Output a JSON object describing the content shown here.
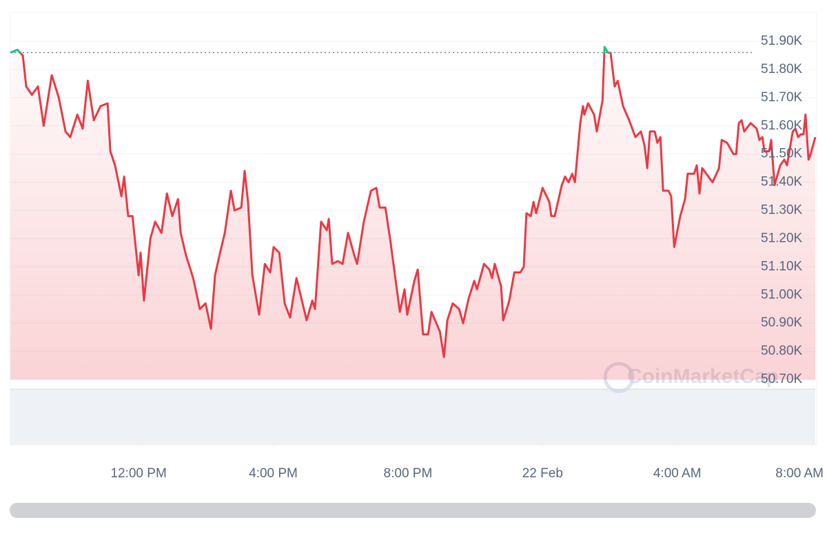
{
  "chart_data": {
    "type": "line",
    "watermark": "CoinMarketCap",
    "color": "#ea3943",
    "up_color": "#16c784",
    "reference_line": 51860,
    "x": [
      8.19,
      8.4,
      8.56,
      8.66,
      8.83,
      9.01,
      9.18,
      9.42,
      9.63,
      9.83,
      9.97,
      10.18,
      10.34,
      10.49,
      10.67,
      10.87,
      11.08,
      11.16,
      11.3,
      11.49,
      11.57,
      11.69,
      11.82,
      12.0,
      12.06,
      12.16,
      12.35,
      12.49,
      12.68,
      12.84,
      13.0,
      13.17,
      13.25,
      13.41,
      13.62,
      13.82,
      13.99,
      14.15,
      14.27,
      14.4,
      14.56,
      14.74,
      14.85,
      15.05,
      15.15,
      15.25,
      15.38,
      15.58,
      15.75,
      15.91,
      16.01,
      16.18,
      16.34,
      16.5,
      16.69,
      16.83,
      16.99,
      17.16,
      17.24,
      17.42,
      17.59,
      17.65,
      17.75,
      17.92,
      18.06,
      18.22,
      18.41,
      18.49,
      18.69,
      18.9,
      19.06,
      19.16,
      19.33,
      19.47,
      19.66,
      19.76,
      19.9,
      19.98,
      20.19,
      20.29,
      20.45,
      20.6,
      20.7,
      20.95,
      21.07,
      21.17,
      21.33,
      21.52,
      21.64,
      21.81,
      21.97,
      22.05,
      22.26,
      22.42,
      22.5,
      22.58,
      22.77,
      22.83,
      23.01,
      23.16,
      23.34,
      23.44,
      23.52,
      23.65,
      23.73,
      23.81,
      24.0,
      24.2,
      24.26,
      24.36,
      24.57,
      24.67,
      24.77,
      24.88,
      24.96,
      25.12,
      25.2,
      25.24,
      25.35,
      25.53,
      25.61,
      25.78,
      25.84,
      25.94,
      26.02,
      26.14,
      26.23,
      26.39,
      26.57,
      26.76,
      26.92,
      27.03,
      27.11,
      27.19,
      27.33,
      27.41,
      27.5,
      27.58,
      27.74,
      27.82,
      27.91,
      28.09,
      28.23,
      28.31,
      28.5,
      28.58,
      28.66,
      28.74,
      29.05,
      29.24,
      29.32,
      29.48,
      29.67,
      29.75,
      29.83,
      29.91,
      29.99,
      30.18,
      30.36,
      30.44,
      30.53,
      30.59,
      30.73,
      30.79,
      30.89,
      31.06,
      31.18,
      31.26,
      31.43,
      31.51,
      31.59,
      31.67,
      31.75,
      31.81,
      31.9,
      31.96,
      32.1
    ],
    "values": [
      51860,
      51870,
      51850,
      51740,
      51710,
      51740,
      51600,
      51780,
      51700,
      51580,
      51560,
      51640,
      51590,
      51760,
      51620,
      51670,
      51680,
      51510,
      51460,
      51350,
      51420,
      51280,
      51280,
      51070,
      51150,
      50980,
      51200,
      51260,
      51220,
      51360,
      51280,
      51340,
      51220,
      51140,
      51060,
      50950,
      50970,
      50880,
      51070,
      51140,
      51220,
      51370,
      51300,
      51310,
      51440,
      51330,
      51070,
      50930,
      51110,
      51080,
      51170,
      51150,
      50970,
      50920,
      51060,
      50990,
      50910,
      50980,
      50950,
      51260,
      51230,
      51270,
      51110,
      51120,
      51110,
      51220,
      51140,
      51110,
      51260,
      51370,
      51380,
      51310,
      51310,
      51200,
      51030,
      50940,
      51020,
      50930,
      51050,
      51090,
      50860,
      50860,
      50940,
      50870,
      50780,
      50910,
      50970,
      50950,
      50900,
      50990,
      51050,
      51020,
      51110,
      51090,
      51060,
      51110,
      51030,
      50910,
      50980,
      51080,
      51080,
      51100,
      51290,
      51280,
      51330,
      51290,
      51380,
      51330,
      51280,
      51280,
      51390,
      51420,
      51400,
      51430,
      51400,
      51610,
      51670,
      51640,
      51680,
      51640,
      51580,
      51690,
      51880,
      51860,
      51860,
      51740,
      51760,
      51670,
      51620,
      51560,
      51580,
      51530,
      51450,
      51580,
      51580,
      51540,
      51560,
      51370,
      51370,
      51350,
      51170,
      51280,
      51340,
      51430,
      51430,
      51460,
      51360,
      51450,
      51400,
      51450,
      51550,
      51540,
      51500,
      51500,
      51610,
      51620,
      51580,
      51610,
      51590,
      51550,
      51560,
      51510,
      51510,
      51550,
      51390,
      51460,
      51480,
      51460,
      51580,
      51590,
      51560,
      51570,
      51570,
      51640,
      51480,
      51500,
      51560
    ],
    "xlim": [
      8.19,
      32.1
    ],
    "xticks": [
      {
        "value": 12,
        "label": "12:00 PM"
      },
      {
        "value": 16,
        "label": "4:00 PM"
      },
      {
        "value": 20,
        "label": "8:00 PM"
      },
      {
        "value": 24,
        "label": "22 Feb"
      },
      {
        "value": 28,
        "label": "4:00 AM"
      },
      {
        "value": 32,
        "label": "8:00 AM"
      }
    ],
    "ylim": [
      50700,
      51900
    ],
    "yticks": [
      {
        "value": 50700,
        "label": "50.70K"
      },
      {
        "value": 50800,
        "label": "50.80K"
      },
      {
        "value": 50900,
        "label": "50.90K"
      },
      {
        "value": 51000,
        "label": "51.00K"
      },
      {
        "value": 51100,
        "label": "51.10K"
      },
      {
        "value": 51200,
        "label": "51.20K"
      },
      {
        "value": 51300,
        "label": "51.30K"
      },
      {
        "value": 51400,
        "label": "51.40K"
      },
      {
        "value": 51500,
        "label": "51.50K"
      },
      {
        "value": 51600,
        "label": "51.60K"
      },
      {
        "value": 51700,
        "label": "51.70K"
      },
      {
        "value": 51800,
        "label": "51.80K"
      },
      {
        "value": 51900,
        "label": "51.90K"
      }
    ],
    "grid": true
  }
}
